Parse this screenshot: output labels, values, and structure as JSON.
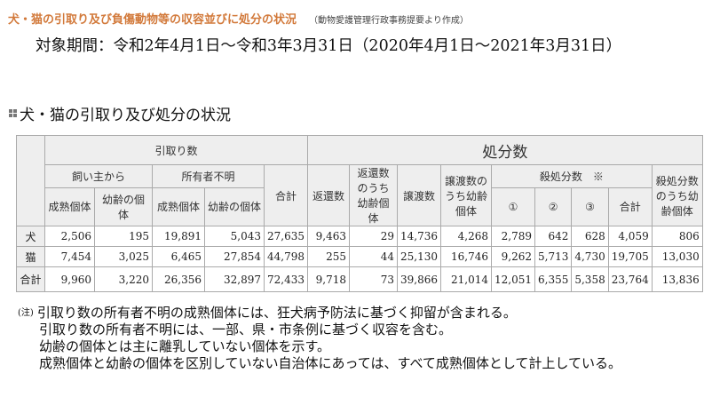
{
  "header": {
    "title": "犬・猫の引取り及び負傷動物等の収容並びに処分の状況",
    "source": "（動物愛護管理行政事務提要より作成）",
    "period": "対象期間：令和2年4月1日〜令和3年3月31日（2020年4月1日〜2021年3月31日）",
    "section_title": "犬・猫の引取り及び処分の状況"
  },
  "table": {
    "h_intake": "引取り数",
    "h_disposal": "処分数",
    "h_owner": "飼い主から",
    "h_unknown": "所有者不明",
    "h_adult": "成熟個体",
    "h_young": "幼齢の個体",
    "h_intake_total": "合計",
    "h_return": "返還数",
    "h_return_young": "返還数のうち幼齢個体",
    "h_transfer": "譲渡数",
    "h_transfer_young": "譲渡数のうち幼齢個体",
    "h_euth": "殺処分数　※",
    "h_e1": "①",
    "h_e2": "②",
    "h_e3": "③",
    "h_euth_total": "合計",
    "h_euth_young": "殺処分数のうち幼齢個体",
    "rows": [
      {
        "label": "犬",
        "values": [
          "2,506",
          "195",
          "19,891",
          "5,043",
          "27,635",
          "9,463",
          "29",
          "14,736",
          "4,268",
          "2,789",
          "642",
          "628",
          "4,059",
          "806"
        ]
      },
      {
        "label": "猫",
        "values": [
          "7,454",
          "3,025",
          "6,465",
          "27,854",
          "44,798",
          "255",
          "44",
          "25,130",
          "16,746",
          "9,262",
          "5,713",
          "4,730",
          "19,705",
          "13,030"
        ]
      },
      {
        "label": "合計",
        "values": [
          "9,960",
          "3,220",
          "26,356",
          "32,897",
          "72,433",
          "9,718",
          "73",
          "39,866",
          "21,014",
          "12,051",
          "6,355",
          "5,358",
          "23,764",
          "13,836"
        ]
      }
    ]
  },
  "notes": {
    "label": "(注)",
    "lines": [
      "引取り数の所有者不明の成熟個体には、狂犬病予防法に基づく抑留が含まれる。",
      "引取り数の所有者不明には、一部、県・市条例に基づく収容を含む。",
      "幼齢の個体とは主に離乳していない個体を示す。",
      "成熟個体と幼齢の個体を区別していない自治体にあっては、すべて成熟個体として計上している。"
    ]
  }
}
